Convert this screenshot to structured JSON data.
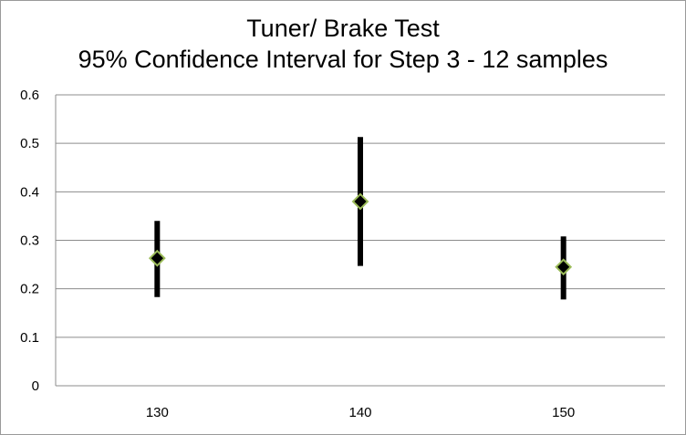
{
  "chart_data": {
    "type": "error-bar",
    "title_lines": [
      "Tuner/ Brake Test",
      "95% Confidence Interval for Step 3 - 12 samples"
    ],
    "xlabel": "",
    "ylabel": "",
    "categories": [
      "130",
      "140",
      "150"
    ],
    "series": [
      {
        "values": [
          0.263,
          0.38,
          0.245
        ],
        "lower": [
          0.183,
          0.247,
          0.178
        ],
        "upper": [
          0.34,
          0.513,
          0.308
        ]
      }
    ],
    "ylim": [
      0,
      0.6
    ],
    "y_ticks": [
      "0",
      "0.1",
      "0.2",
      "0.3",
      "0.4",
      "0.5",
      "0.6"
    ],
    "y_tick_values": [
      0,
      0.1,
      0.2,
      0.3,
      0.4,
      0.5,
      0.6
    ],
    "grid": true,
    "legend": "none",
    "colors": {
      "error_bar": "#000000",
      "marker_fill": "#000000",
      "marker_stroke": "#9bbb59",
      "grid": "#8c8c8c",
      "frame": "#9a9a9a"
    }
  }
}
